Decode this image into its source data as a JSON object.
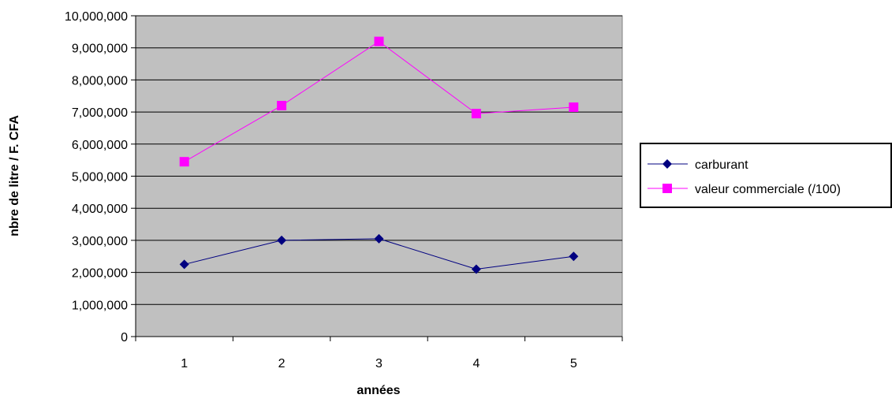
{
  "chart_data": {
    "type": "line",
    "categories": [
      "1",
      "2",
      "3",
      "4",
      "5"
    ],
    "series": [
      {
        "name": "carburant",
        "values": [
          2250000,
          3000000,
          3050000,
          2100000,
          2500000
        ],
        "color": "#000080",
        "marker": "diamond"
      },
      {
        "name": "valeur commerciale (/100)",
        "values": [
          5450000,
          7200000,
          9200000,
          6950000,
          7150000
        ],
        "color": "#ff00ff",
        "marker": "square"
      }
    ],
    "title": "",
    "xlabel": "années",
    "ylabel": "nbre de litre / F. CFA",
    "ylim": [
      0,
      10000000
    ],
    "ytick_step": 1000000,
    "ytick_labels": [
      "0",
      "1,000,000",
      "2,000,000",
      "3,000,000",
      "4,000,000",
      "5,000,000",
      "6,000,000",
      "7,000,000",
      "8,000,000",
      "9,000,000",
      "10,000,000"
    ],
    "plot_background": "#c0c0c0",
    "grid": true,
    "legend_position": "right"
  }
}
